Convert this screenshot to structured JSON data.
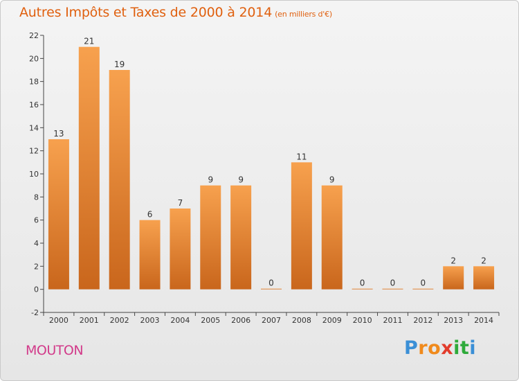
{
  "header": {
    "title": "Autres Impôts et Taxes de 2000 à 2014",
    "unit": "(en milliers d'€)"
  },
  "footer": {
    "place": "MOUTON",
    "brand": [
      "P",
      "r",
      "o",
      "x",
      "i",
      "t",
      "i"
    ]
  },
  "colors": {
    "bar_top": "#f7a14e",
    "bar_bottom": "#c9661c",
    "title": "#e0600f",
    "place": "#d23a8a",
    "brand": [
      "#3a8fd6",
      "#f08a1c",
      "#f08a1c",
      "#e23c2c",
      "#2eaa3a",
      "#2eaa3a",
      "#3a8fd6"
    ]
  },
  "chart_data": {
    "type": "bar",
    "title": "Autres Impôts et Taxes de 2000 à 2014",
    "xlabel": "",
    "ylabel": "",
    "categories": [
      "2000",
      "2001",
      "2002",
      "2003",
      "2004",
      "2005",
      "2006",
      "2007",
      "2008",
      "2009",
      "2010",
      "2011",
      "2012",
      "2013",
      "2014"
    ],
    "values": [
      13,
      21,
      19,
      6,
      7,
      9,
      9,
      0,
      11,
      9,
      0,
      0,
      0,
      2,
      2
    ],
    "ylim": [
      -2,
      22
    ],
    "yticks": [
      -2,
      0,
      2,
      4,
      6,
      8,
      10,
      12,
      14,
      16,
      18,
      20,
      22
    ],
    "grid": false,
    "legend": "none"
  }
}
